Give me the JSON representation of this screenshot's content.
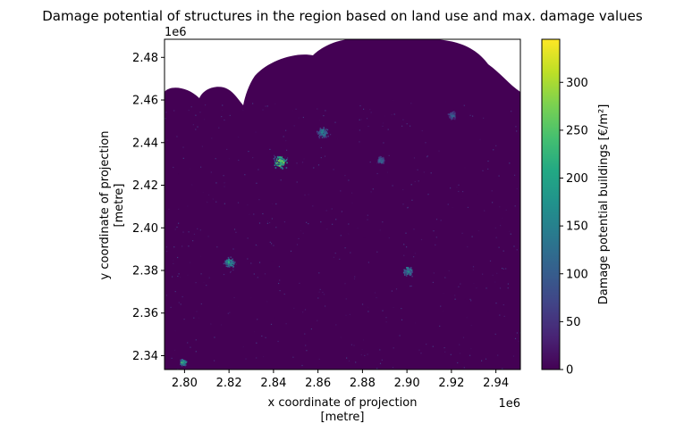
{
  "chart_data": {
    "type": "heatmap",
    "title": "Damage potential of structures in the region based on land use and max. damage values",
    "xlabel_line1": "x coordinate of projection",
    "xlabel_line2": "[metre]",
    "ylabel_line1": "y coordinate of projection",
    "ylabel_line2": "[metre]",
    "x_offset_label": "1e6",
    "y_offset_label": "1e6",
    "xlim": [
      2.791,
      2.951
    ],
    "ylim": [
      2.3335,
      2.4885
    ],
    "x_ticks": [
      {
        "value": 2.8,
        "label": "2.80"
      },
      {
        "value": 2.82,
        "label": "2.82"
      },
      {
        "value": 2.84,
        "label": "2.84"
      },
      {
        "value": 2.86,
        "label": "2.86"
      },
      {
        "value": 2.88,
        "label": "2.88"
      },
      {
        "value": 2.9,
        "label": "2.90"
      },
      {
        "value": 2.92,
        "label": "2.92"
      },
      {
        "value": 2.94,
        "label": "2.94"
      }
    ],
    "y_ticks": [
      {
        "value": 2.34,
        "label": "2.34"
      },
      {
        "value": 2.36,
        "label": "2.36"
      },
      {
        "value": 2.38,
        "label": "2.38"
      },
      {
        "value": 2.4,
        "label": "2.40"
      },
      {
        "value": 2.42,
        "label": "2.42"
      },
      {
        "value": 2.44,
        "label": "2.44"
      },
      {
        "value": 2.46,
        "label": "2.46"
      },
      {
        "value": 2.48,
        "label": "2.48"
      }
    ],
    "colorbar": {
      "label": "Damage potential buildings [€/m²]",
      "colormap": "viridis",
      "range": [
        0,
        345
      ],
      "ticks": [
        {
          "value": 0,
          "label": "0"
        },
        {
          "value": 50,
          "label": "50"
        },
        {
          "value": 100,
          "label": "100"
        },
        {
          "value": 150,
          "label": "150"
        },
        {
          "value": 200,
          "label": "200"
        },
        {
          "value": 250,
          "label": "250"
        },
        {
          "value": 300,
          "label": "300"
        }
      ]
    },
    "background_value": 0,
    "hotspots": [
      {
        "x": 2.843,
        "y": 2.431,
        "peak": 340,
        "spread": 0.004
      },
      {
        "x": 2.862,
        "y": 2.445,
        "peak": 180,
        "spread": 0.003
      },
      {
        "x": 2.82,
        "y": 2.384,
        "peak": 230,
        "spread": 0.003
      },
      {
        "x": 2.9,
        "y": 2.38,
        "peak": 200,
        "spread": 0.003
      },
      {
        "x": 2.799,
        "y": 2.337,
        "peak": 300,
        "spread": 0.002
      },
      {
        "x": 2.888,
        "y": 2.432,
        "peak": 160,
        "spread": 0.002
      },
      {
        "x": 2.92,
        "y": 2.453,
        "peak": 140,
        "spread": 0.002
      }
    ]
  }
}
